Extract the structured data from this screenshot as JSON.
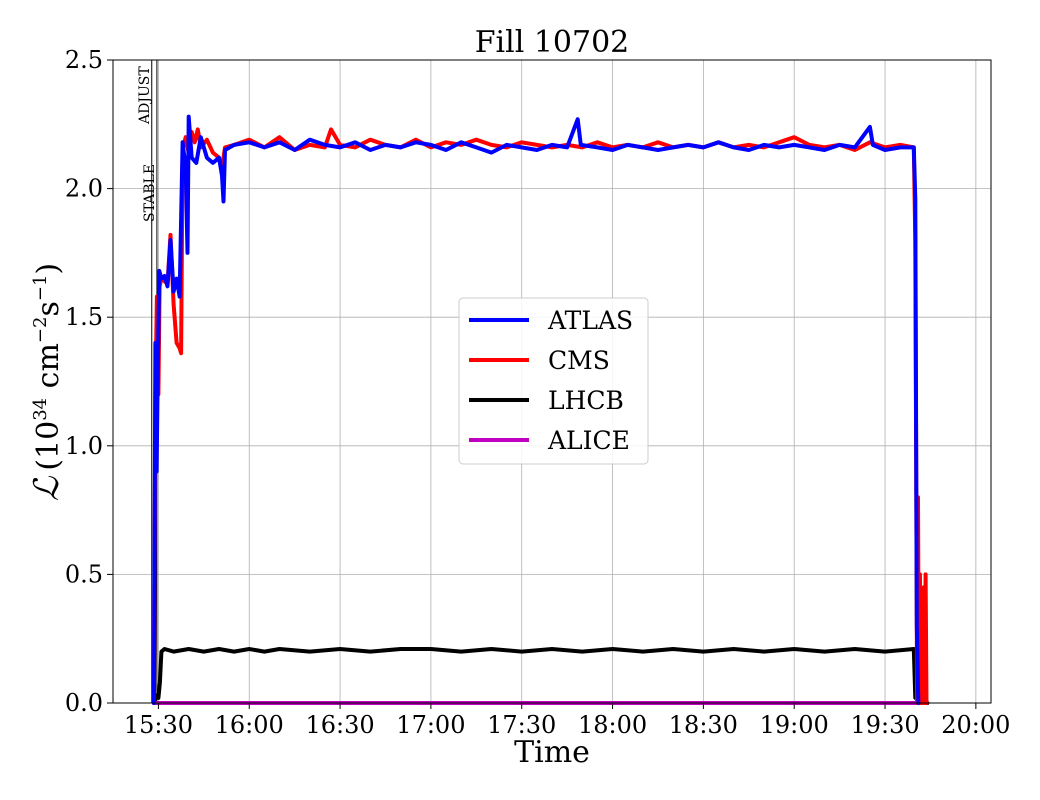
{
  "chart_data": {
    "type": "line",
    "title": "Fill 10702",
    "xlabel": "Time",
    "ylabel_script": "ℒ",
    "ylabel_units": {
      "open": "(10",
      "exp1": "34",
      "mid": " cm",
      "exp2": "−2",
      "s": "s",
      "exp3": "−1",
      "close": ")"
    },
    "xlim_minutes": [
      915,
      1205
    ],
    "ylim": [
      0,
      2.5
    ],
    "grid": true,
    "x_ticks": [
      {
        "label": "15:30",
        "minutes": 930
      },
      {
        "label": "16:00",
        "minutes": 960
      },
      {
        "label": "16:30",
        "minutes": 990
      },
      {
        "label": "17:00",
        "minutes": 1020
      },
      {
        "label": "17:30",
        "minutes": 1050
      },
      {
        "label": "18:00",
        "minutes": 1080
      },
      {
        "label": "18:30",
        "minutes": 1110
      },
      {
        "label": "19:00",
        "minutes": 1140
      },
      {
        "label": "19:30",
        "minutes": 1170
      },
      {
        "label": "20:00",
        "minutes": 1200
      }
    ],
    "y_ticks": [
      "0.0",
      "0.5",
      "1.0",
      "1.5",
      "2.0",
      "2.5"
    ],
    "phase_markers": [
      {
        "label": "ADJUST",
        "minutes": 927.8
      },
      {
        "label": "STABLE",
        "minutes": 929.5
      }
    ],
    "legend_position": "center",
    "series": [
      {
        "name": "ATLAS",
        "color": "#0000ff",
        "points": [
          [
            928.5,
            0.0
          ],
          [
            929.0,
            1.4
          ],
          [
            929.4,
            0.9
          ],
          [
            929.8,
            1.3
          ],
          [
            930.3,
            1.68
          ],
          [
            931.0,
            1.65
          ],
          [
            932.0,
            1.66
          ],
          [
            933.0,
            1.62
          ],
          [
            934.0,
            1.8
          ],
          [
            935.0,
            1.6
          ],
          [
            936.0,
            1.65
          ],
          [
            937.0,
            1.58
          ],
          [
            938.0,
            2.18
          ],
          [
            939.0,
            2.08
          ],
          [
            939.6,
            1.75
          ],
          [
            940.0,
            2.28
          ],
          [
            941.0,
            2.12
          ],
          [
            942.5,
            2.1
          ],
          [
            944.0,
            2.2
          ],
          [
            946.0,
            2.12
          ],
          [
            948.0,
            2.1
          ],
          [
            950.0,
            2.12
          ],
          [
            951.0,
            2.05
          ],
          [
            951.5,
            1.95
          ],
          [
            952.0,
            2.15
          ],
          [
            955.0,
            2.17
          ],
          [
            960.0,
            2.18
          ],
          [
            965.0,
            2.16
          ],
          [
            970.0,
            2.18
          ],
          [
            975.0,
            2.15
          ],
          [
            980.0,
            2.19
          ],
          [
            985.0,
            2.17
          ],
          [
            990.0,
            2.16
          ],
          [
            995.0,
            2.18
          ],
          [
            1000.0,
            2.15
          ],
          [
            1005.0,
            2.17
          ],
          [
            1010.0,
            2.16
          ],
          [
            1015.0,
            2.18
          ],
          [
            1020.0,
            2.17
          ],
          [
            1025.0,
            2.15
          ],
          [
            1030.0,
            2.18
          ],
          [
            1035.0,
            2.16
          ],
          [
            1040.0,
            2.14
          ],
          [
            1045.0,
            2.17
          ],
          [
            1050.0,
            2.16
          ],
          [
            1055.0,
            2.15
          ],
          [
            1060.0,
            2.17
          ],
          [
            1065.0,
            2.16
          ],
          [
            1068.5,
            2.27
          ],
          [
            1069.5,
            2.17
          ],
          [
            1075.0,
            2.16
          ],
          [
            1080.0,
            2.15
          ],
          [
            1085.0,
            2.17
          ],
          [
            1090.0,
            2.16
          ],
          [
            1095.0,
            2.15
          ],
          [
            1100.0,
            2.16
          ],
          [
            1105.0,
            2.17
          ],
          [
            1110.0,
            2.16
          ],
          [
            1115.0,
            2.18
          ],
          [
            1120.0,
            2.16
          ],
          [
            1125.0,
            2.15
          ],
          [
            1130.0,
            2.17
          ],
          [
            1135.0,
            2.16
          ],
          [
            1140.0,
            2.17
          ],
          [
            1145.0,
            2.16
          ],
          [
            1150.0,
            2.15
          ],
          [
            1155.0,
            2.17
          ],
          [
            1160.0,
            2.16
          ],
          [
            1165.0,
            2.24
          ],
          [
            1166.0,
            2.17
          ],
          [
            1170.0,
            2.15
          ],
          [
            1175.0,
            2.16
          ],
          [
            1179.5,
            2.16
          ],
          [
            1180.0,
            1.96
          ],
          [
            1180.5,
            0.3
          ],
          [
            1181.0,
            0.0
          ]
        ]
      },
      {
        "name": "CMS",
        "color": "#ff0000",
        "points": [
          [
            928.5,
            0.0
          ],
          [
            929.0,
            1.2
          ],
          [
            929.5,
            1.58
          ],
          [
            930.0,
            1.2
          ],
          [
            930.4,
            1.62
          ],
          [
            931.0,
            1.65
          ],
          [
            932.0,
            1.64
          ],
          [
            933.0,
            1.63
          ],
          [
            934.0,
            1.82
          ],
          [
            935.0,
            1.55
          ],
          [
            936.0,
            1.4
          ],
          [
            937.0,
            1.38
          ],
          [
            937.5,
            1.36
          ],
          [
            938.0,
            2.15
          ],
          [
            939.0,
            2.2
          ],
          [
            940.0,
            2.14
          ],
          [
            941.0,
            2.22
          ],
          [
            942.0,
            2.18
          ],
          [
            943.0,
            2.23
          ],
          [
            944.0,
            2.16
          ],
          [
            946.0,
            2.19
          ],
          [
            948.0,
            2.14
          ],
          [
            950.0,
            2.12
          ],
          [
            951.0,
            2.08
          ],
          [
            952.0,
            2.16
          ],
          [
            955.0,
            2.17
          ],
          [
            960.0,
            2.19
          ],
          [
            965.0,
            2.16
          ],
          [
            970.0,
            2.2
          ],
          [
            975.0,
            2.15
          ],
          [
            980.0,
            2.17
          ],
          [
            985.0,
            2.16
          ],
          [
            987.0,
            2.23
          ],
          [
            990.0,
            2.17
          ],
          [
            995.0,
            2.16
          ],
          [
            1000.0,
            2.19
          ],
          [
            1005.0,
            2.17
          ],
          [
            1010.0,
            2.16
          ],
          [
            1015.0,
            2.19
          ],
          [
            1020.0,
            2.16
          ],
          [
            1025.0,
            2.18
          ],
          [
            1030.0,
            2.17
          ],
          [
            1035.0,
            2.19
          ],
          [
            1040.0,
            2.17
          ],
          [
            1045.0,
            2.16
          ],
          [
            1050.0,
            2.18
          ],
          [
            1055.0,
            2.17
          ],
          [
            1060.0,
            2.16
          ],
          [
            1065.0,
            2.17
          ],
          [
            1070.0,
            2.16
          ],
          [
            1075.0,
            2.18
          ],
          [
            1080.0,
            2.16
          ],
          [
            1085.0,
            2.17
          ],
          [
            1090.0,
            2.16
          ],
          [
            1095.0,
            2.18
          ],
          [
            1100.0,
            2.16
          ],
          [
            1105.0,
            2.17
          ],
          [
            1110.0,
            2.16
          ],
          [
            1115.0,
            2.18
          ],
          [
            1120.0,
            2.16
          ],
          [
            1125.0,
            2.17
          ],
          [
            1130.0,
            2.16
          ],
          [
            1135.0,
            2.18
          ],
          [
            1140.0,
            2.2
          ],
          [
            1145.0,
            2.17
          ],
          [
            1150.0,
            2.16
          ],
          [
            1155.0,
            2.17
          ],
          [
            1160.0,
            2.15
          ],
          [
            1165.0,
            2.18
          ],
          [
            1170.0,
            2.16
          ],
          [
            1175.0,
            2.17
          ],
          [
            1179.5,
            2.16
          ],
          [
            1180.0,
            1.8
          ],
          [
            1180.3,
            0.9
          ],
          [
            1180.6,
            0.0
          ],
          [
            1180.9,
            0.8
          ],
          [
            1181.2,
            0.0
          ],
          [
            1181.5,
            0.5
          ],
          [
            1181.8,
            0.0
          ],
          [
            1182.2,
            0.4
          ],
          [
            1182.5,
            0.0
          ],
          [
            1182.8,
            0.45
          ],
          [
            1183.1,
            0.0
          ],
          [
            1183.4,
            0.5
          ],
          [
            1183.7,
            0.0
          ]
        ]
      },
      {
        "name": "LHCB",
        "color": "#000000",
        "points": [
          [
            928.5,
            0.0
          ],
          [
            929.0,
            0.03
          ],
          [
            930.0,
            0.02
          ],
          [
            930.5,
            0.08
          ],
          [
            931.0,
            0.2
          ],
          [
            932.0,
            0.21
          ],
          [
            935.0,
            0.2
          ],
          [
            940.0,
            0.21
          ],
          [
            945.0,
            0.2
          ],
          [
            950.0,
            0.21
          ],
          [
            955.0,
            0.2
          ],
          [
            960.0,
            0.21
          ],
          [
            965.0,
            0.2
          ],
          [
            970.0,
            0.21
          ],
          [
            980.0,
            0.2
          ],
          [
            990.0,
            0.21
          ],
          [
            1000.0,
            0.2
          ],
          [
            1010.0,
            0.21
          ],
          [
            1020.0,
            0.21
          ],
          [
            1030.0,
            0.2
          ],
          [
            1040.0,
            0.21
          ],
          [
            1050.0,
            0.2
          ],
          [
            1060.0,
            0.21
          ],
          [
            1070.0,
            0.2
          ],
          [
            1080.0,
            0.21
          ],
          [
            1090.0,
            0.2
          ],
          [
            1100.0,
            0.21
          ],
          [
            1110.0,
            0.2
          ],
          [
            1120.0,
            0.21
          ],
          [
            1130.0,
            0.2
          ],
          [
            1140.0,
            0.21
          ],
          [
            1150.0,
            0.2
          ],
          [
            1160.0,
            0.21
          ],
          [
            1170.0,
            0.2
          ],
          [
            1179.5,
            0.21
          ],
          [
            1180.0,
            0.02
          ],
          [
            1182.0,
            0.01
          ],
          [
            1184.0,
            0.0
          ]
        ]
      },
      {
        "name": "ALICE",
        "color": "#c000c0",
        "points": [
          [
            928.5,
            0.0
          ],
          [
            1184.0,
            0.0
          ]
        ]
      }
    ]
  }
}
